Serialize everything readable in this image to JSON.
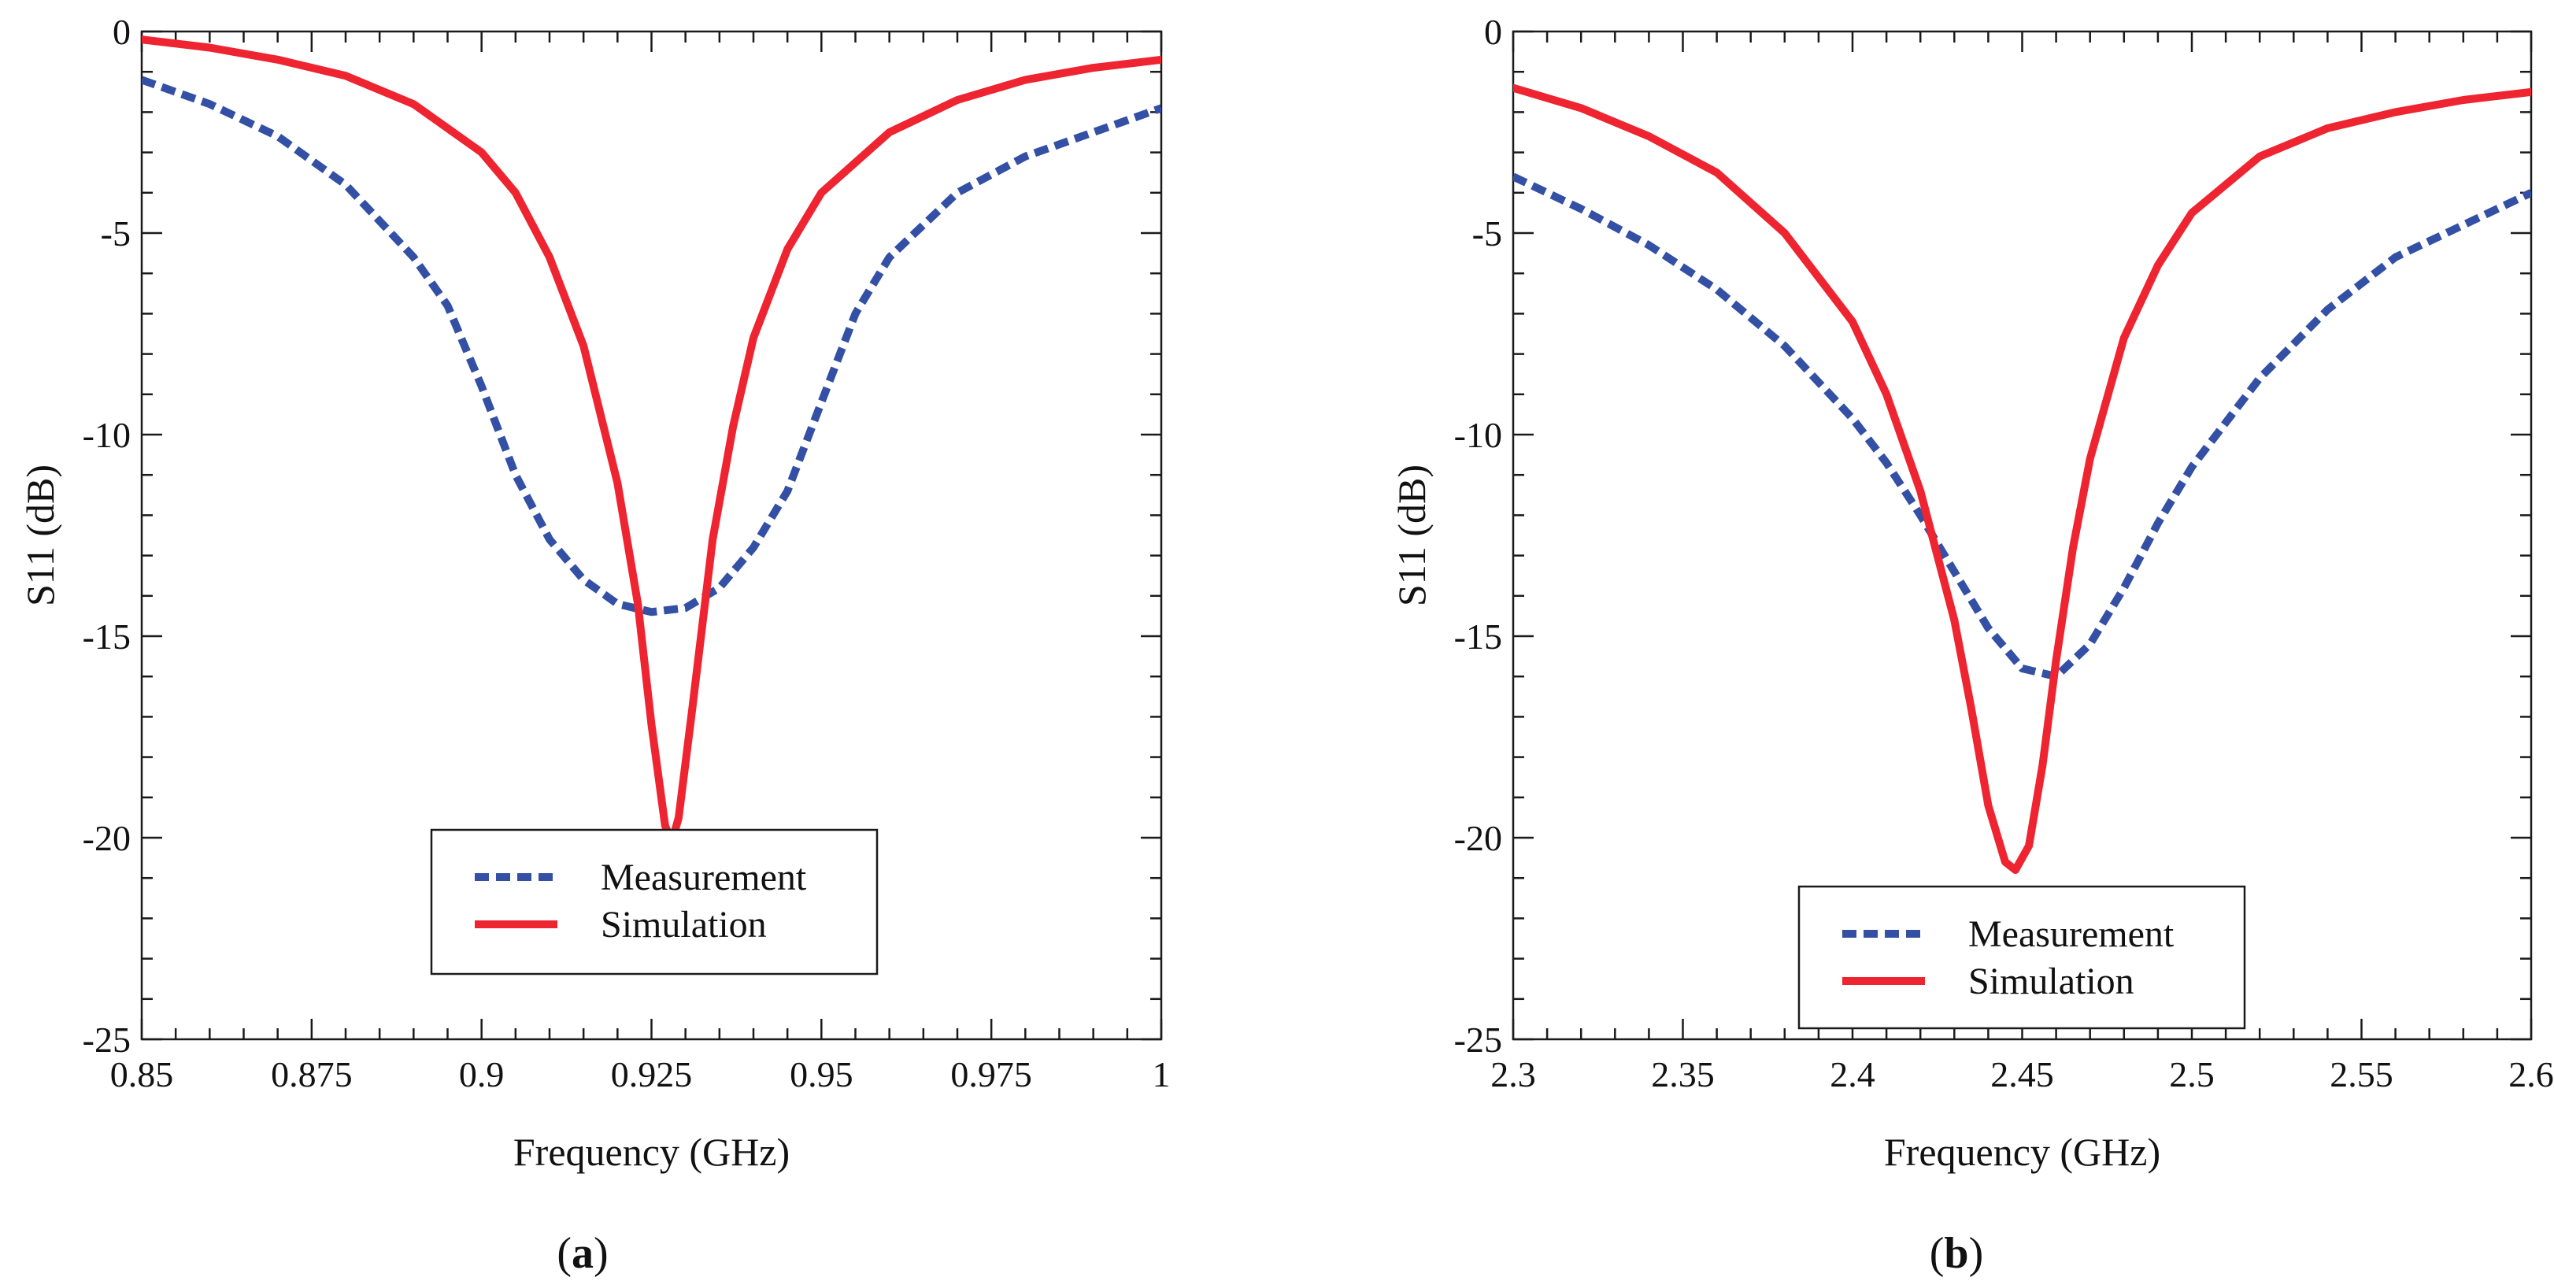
{
  "colors": {
    "measurement": "#3350a5",
    "simulation": "#ee2431",
    "axis": "#1a1a1a",
    "text": "#111111"
  },
  "chart_data": [
    {
      "type": "line",
      "panel": "a",
      "caption": {
        "open": "(",
        "letter": "a",
        "close": ")"
      },
      "xlabel": "Frequency (GHz)",
      "ylabel": "S11 (dB)",
      "xlim": [
        0.85,
        1
      ],
      "ylim": [
        -25,
        0
      ],
      "xticks": [
        0.85,
        0.875,
        0.9,
        0.925,
        0.95,
        0.975,
        1
      ],
      "xtick_labels": [
        "0.85",
        "0.875",
        "0.9",
        "0.925",
        "0.95",
        "0.975",
        "1"
      ],
      "yticks": [
        0,
        -5,
        -10,
        -15,
        -20,
        -25
      ],
      "ytick_labels": [
        "0",
        "-5",
        "-10",
        "-15",
        "-20",
        "-25"
      ],
      "legend": {
        "position": "lower-center",
        "entries": [
          "Measurement",
          "Simulation"
        ]
      },
      "series": [
        {
          "name": "Measurement",
          "style": "dashed",
          "x": [
            0.85,
            0.86,
            0.87,
            0.88,
            0.89,
            0.895,
            0.9,
            0.905,
            0.91,
            0.915,
            0.92,
            0.925,
            0.93,
            0.935,
            0.94,
            0.945,
            0.95,
            0.955,
            0.96,
            0.97,
            0.98,
            0.99,
            1.0
          ],
          "y": [
            -1.2,
            -1.8,
            -2.6,
            -3.8,
            -5.6,
            -6.8,
            -8.8,
            -11.0,
            -12.6,
            -13.6,
            -14.2,
            -14.4,
            -14.3,
            -13.8,
            -12.8,
            -11.4,
            -9.2,
            -7.0,
            -5.6,
            -4.0,
            -3.1,
            -2.5,
            -1.9
          ]
        },
        {
          "name": "Simulation",
          "style": "solid",
          "x": [
            0.85,
            0.86,
            0.87,
            0.88,
            0.89,
            0.9,
            0.905,
            0.91,
            0.915,
            0.92,
            0.923,
            0.925,
            0.927,
            0.928,
            0.929,
            0.931,
            0.934,
            0.937,
            0.94,
            0.945,
            0.95,
            0.96,
            0.97,
            0.98,
            0.99,
            1.0
          ],
          "y": [
            -0.2,
            -0.4,
            -0.7,
            -1.1,
            -1.8,
            -3.0,
            -4.0,
            -5.6,
            -7.8,
            -11.2,
            -14.2,
            -17.2,
            -19.7,
            -20.1,
            -19.5,
            -16.8,
            -12.6,
            -9.8,
            -7.6,
            -5.4,
            -4.0,
            -2.5,
            -1.7,
            -1.2,
            -0.9,
            -0.7
          ]
        }
      ]
    },
    {
      "type": "line",
      "panel": "b",
      "caption": {
        "open": "(",
        "letter": "b",
        "close": ")"
      },
      "xlabel": "Frequency (GHz)",
      "ylabel": "S11 (dB)",
      "xlim": [
        2.3,
        2.6
      ],
      "ylim": [
        -25,
        0
      ],
      "xticks": [
        2.3,
        2.35,
        2.4,
        2.45,
        2.5,
        2.55,
        2.6
      ],
      "xtick_labels": [
        "2.3",
        "2.35",
        "2.4",
        "2.45",
        "2.5",
        "2.55",
        "2.6"
      ],
      "yticks": [
        0,
        -5,
        -10,
        -15,
        -20,
        -25
      ],
      "ytick_labels": [
        "0",
        "-5",
        "-10",
        "-15",
        "-20",
        "-25"
      ],
      "legend": {
        "position": "lower-center",
        "entries": [
          "Measurement",
          "Simulation"
        ]
      },
      "series": [
        {
          "name": "Measurement",
          "style": "dashed",
          "x": [
            2.3,
            2.32,
            2.34,
            2.36,
            2.38,
            2.4,
            2.41,
            2.42,
            2.43,
            2.44,
            2.45,
            2.46,
            2.47,
            2.48,
            2.49,
            2.5,
            2.52,
            2.54,
            2.56,
            2.58,
            2.6
          ],
          "y": [
            -3.6,
            -4.4,
            -5.3,
            -6.4,
            -7.8,
            -9.6,
            -10.7,
            -12.0,
            -13.4,
            -14.8,
            -15.8,
            -16.0,
            -15.2,
            -13.8,
            -12.2,
            -10.8,
            -8.6,
            -6.9,
            -5.6,
            -4.8,
            -4.0
          ]
        },
        {
          "name": "Simulation",
          "style": "solid",
          "x": [
            2.3,
            2.32,
            2.34,
            2.36,
            2.38,
            2.4,
            2.41,
            2.42,
            2.43,
            2.435,
            2.44,
            2.445,
            2.448,
            2.452,
            2.456,
            2.46,
            2.465,
            2.47,
            2.48,
            2.49,
            2.5,
            2.52,
            2.54,
            2.56,
            2.58,
            2.6
          ],
          "y": [
            -1.4,
            -1.9,
            -2.6,
            -3.5,
            -5.0,
            -7.2,
            -9.0,
            -11.4,
            -14.6,
            -16.8,
            -19.2,
            -20.6,
            -20.8,
            -20.2,
            -18.2,
            -15.6,
            -12.8,
            -10.6,
            -7.6,
            -5.8,
            -4.5,
            -3.1,
            -2.4,
            -2.0,
            -1.7,
            -1.5
          ]
        }
      ]
    }
  ]
}
